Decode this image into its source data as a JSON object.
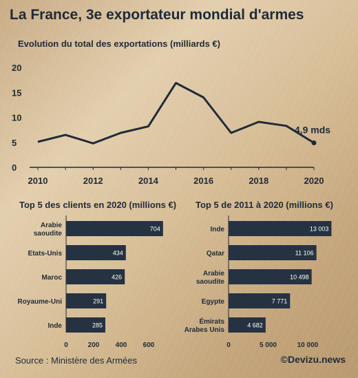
{
  "title": "La France, 3e exportateur mondial d'armes",
  "source": "Source : Ministère des Armées",
  "brand": "©Devizu.news",
  "colors": {
    "ink": "#1f2a38",
    "bar": "#253241",
    "bar_text": "#ffffff"
  },
  "chart_data": [
    {
      "type": "line",
      "title": "Evolution du total des exportations  (milliards €)",
      "x": [
        2010,
        2011,
        2012,
        2013,
        2014,
        2015,
        2016,
        2017,
        2018,
        2019,
        2020
      ],
      "series": [
        {
          "values": [
            5.1,
            6.5,
            4.8,
            6.9,
            8.2,
            16.9,
            14.0,
            6.9,
            9.1,
            8.3,
            4.9
          ]
        }
      ],
      "xticks": [
        "2010",
        "2012",
        "2014",
        "2016",
        "2018",
        "2020"
      ],
      "yticks": [
        "0",
        "5",
        "10",
        "15",
        "20"
      ],
      "ylim": [
        0,
        20
      ],
      "xlim": [
        2010,
        2020
      ],
      "annotation": {
        "x": 2020,
        "y": 4.9,
        "text": "4,9 mds"
      },
      "grid": false
    },
    {
      "type": "bar",
      "orientation": "horizontal",
      "title": "Top 5 des clients en 2020 (millions €)",
      "categories": [
        [
          "Arabie",
          "saoudite"
        ],
        [
          "Etats-Unis"
        ],
        [
          "Maroc"
        ],
        [
          "Royaume-Uni"
        ],
        [
          "Inde"
        ]
      ],
      "values": [
        704,
        434,
        426,
        291,
        285
      ],
      "value_labels": [
        "704",
        "434",
        "426",
        "291",
        "285"
      ],
      "xticks": [
        "0",
        "200",
        "400",
        "600"
      ],
      "xtick_values": [
        0,
        200,
        400,
        600
      ],
      "xlim": [
        0,
        720
      ]
    },
    {
      "type": "bar",
      "orientation": "horizontal",
      "title": "Top 5 de 2011 à 2020 (millions €)",
      "categories": [
        [
          "Inde"
        ],
        [
          "Qatar"
        ],
        [
          "Arabie",
          "saoudite"
        ],
        [
          "Egypte"
        ],
        [
          "Émirats",
          "Arabes Unis"
        ]
      ],
      "values": [
        13003,
        11106,
        10498,
        7771,
        4682
      ],
      "value_labels": [
        "13 003",
        "11 106",
        "10 498",
        "7 771",
        "4 682"
      ],
      "xticks": [
        "0",
        "5 000",
        "10 000"
      ],
      "xtick_values": [
        0,
        5000,
        10000
      ],
      "xlim": [
        0,
        13400
      ]
    }
  ]
}
